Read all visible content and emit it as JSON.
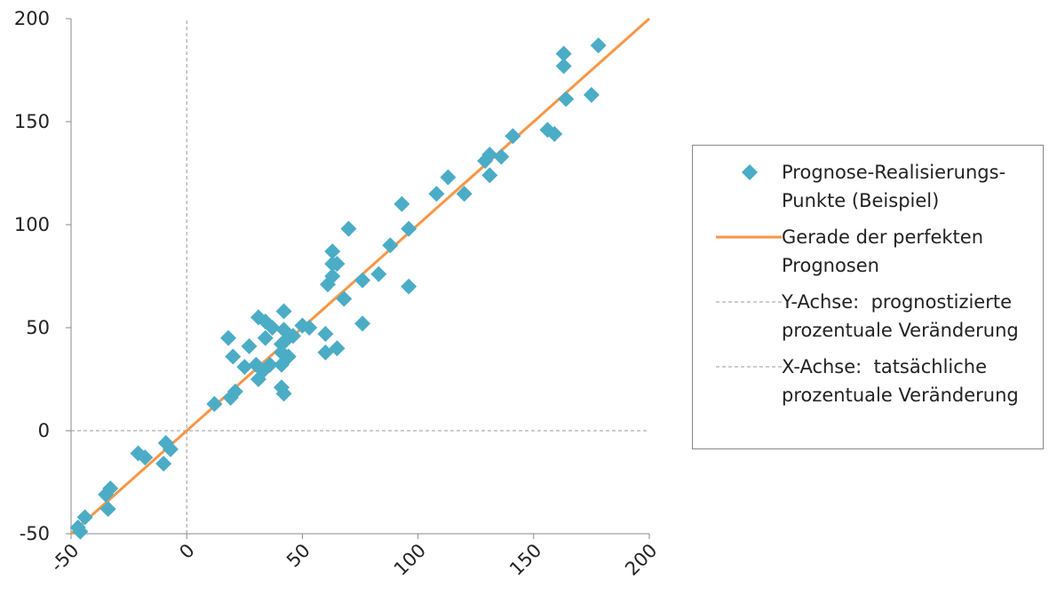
{
  "chart_data": {
    "type": "scatter",
    "xlim": [
      -50,
      200
    ],
    "ylim": [
      -50,
      200
    ],
    "xticks": [
      -50,
      0,
      50,
      100,
      150,
      200
    ],
    "yticks": [
      -50,
      0,
      50,
      100,
      150,
      200
    ],
    "series": [
      {
        "name": "Prognose-Realisierungs-Punkte (Beispiel)",
        "type": "scatter",
        "color": "#4bacc6",
        "x": [
          -47,
          -46,
          -44,
          -35,
          -33,
          -34,
          -21,
          -18,
          -10,
          -9,
          -7,
          12,
          19,
          21,
          18,
          20,
          25,
          27,
          31,
          34,
          30,
          31,
          33,
          34,
          37,
          36,
          41,
          41,
          41,
          42,
          42,
          42,
          43,
          44,
          46,
          41,
          50,
          53,
          60,
          60,
          61,
          63,
          63,
          65,
          63,
          65,
          68,
          70,
          76,
          76,
          83,
          88,
          93,
          96,
          96,
          108,
          113,
          120,
          129,
          131,
          131,
          136,
          141,
          156,
          159,
          163,
          163,
          164,
          175,
          178
        ],
        "values": [
          -47,
          -49,
          -42,
          -31,
          -28,
          -38,
          -11,
          -13,
          -16,
          -6,
          -9,
          13,
          16,
          19,
          45,
          36,
          31,
          41,
          55,
          53,
          32,
          25,
          29,
          45,
          50,
          32,
          38,
          32,
          21,
          18,
          58,
          49,
          44,
          36,
          46,
          42,
          51,
          50,
          38,
          47,
          71,
          75,
          81,
          81,
          87,
          40,
          64,
          98,
          73,
          52,
          76,
          90,
          110,
          98,
          70,
          115,
          123,
          115,
          131,
          134,
          124,
          133,
          143,
          146,
          144,
          183,
          177,
          161,
          163,
          187
        ]
      },
      {
        "name": "Gerade der perfekten Prognosen",
        "type": "line",
        "color": "#f79646",
        "dash": false,
        "x": [
          -50,
          200
        ],
        "values": [
          -50,
          200
        ]
      },
      {
        "name": "Y-Achse:  prognostizierte prozentuale Veränderung",
        "type": "line",
        "color": "#999999",
        "dash": true,
        "x": [
          0,
          0
        ],
        "values": [
          -50,
          200
        ]
      },
      {
        "name": "X-Achse:  tatsächliche prozentuale Veränderung",
        "type": "line",
        "color": "#999999",
        "dash": true,
        "x": [
          -50,
          200
        ],
        "values": [
          0,
          0
        ]
      }
    ]
  }
}
